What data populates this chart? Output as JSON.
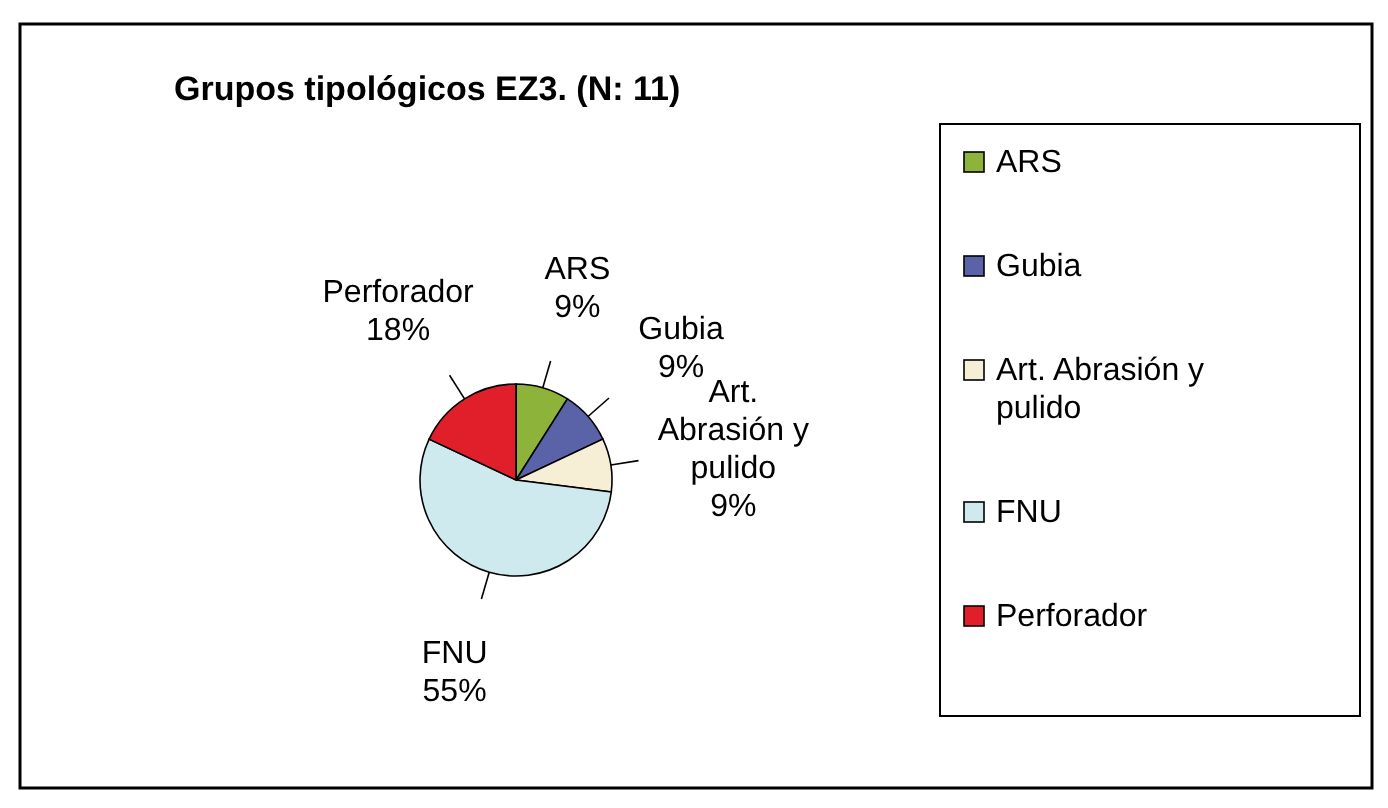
{
  "chart_data": {
    "type": "pie",
    "title": "Grupos tipológicos EZ3. (N: 11)",
    "categories": [
      "ARS",
      "Gubia",
      "Art. Abrasión y pulido",
      "FNU",
      "Perforador"
    ],
    "values": [
      9,
      9,
      9,
      55,
      18
    ],
    "colors": [
      "#8db33a",
      "#5b63a8",
      "#f6efd6",
      "#cfeaee",
      "#e11f2b"
    ],
    "value_labels": [
      "9%",
      "9%",
      "9%",
      "55%",
      "18%"
    ],
    "legend": "right"
  }
}
